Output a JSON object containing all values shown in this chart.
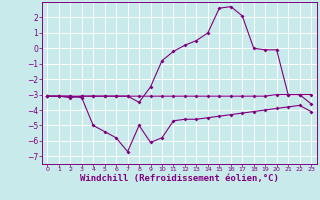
{
  "background_color": "#c8eaea",
  "grid_color": "#ffffff",
  "line_color": "#800080",
  "xlabel": "Windchill (Refroidissement éolien,°C)",
  "xlim": [
    -0.5,
    23.5
  ],
  "ylim": [
    -7.5,
    3.0
  ],
  "xticks": [
    0,
    1,
    2,
    3,
    4,
    5,
    6,
    7,
    8,
    9,
    10,
    11,
    12,
    13,
    14,
    15,
    16,
    17,
    18,
    19,
    20,
    21,
    22,
    23
  ],
  "yticks": [
    -7,
    -6,
    -5,
    -4,
    -3,
    -2,
    -1,
    0,
    1,
    2
  ],
  "line1_x": [
    0,
    1,
    2,
    3,
    4,
    5,
    6,
    7,
    8,
    9,
    10,
    11,
    12,
    13,
    14,
    15,
    16,
    17,
    18,
    19,
    20,
    21,
    22,
    23
  ],
  "line1_y": [
    -3.1,
    -3.1,
    -3.2,
    -3.1,
    -3.1,
    -3.1,
    -3.1,
    -3.1,
    -3.1,
    -3.1,
    -3.1,
    -3.1,
    -3.1,
    -3.1,
    -3.1,
    -3.1,
    -3.1,
    -3.1,
    -3.1,
    -3.1,
    -3.0,
    -3.0,
    -3.0,
    -3.0
  ],
  "line2_x": [
    0,
    1,
    2,
    3,
    4,
    5,
    6,
    7,
    8,
    9,
    10,
    11,
    12,
    13,
    14,
    15,
    16,
    17,
    18,
    19,
    20,
    21,
    22,
    23
  ],
  "line2_y": [
    -3.1,
    -3.1,
    -3.1,
    -3.2,
    -5.0,
    -5.4,
    -5.8,
    -6.7,
    -5.0,
    -6.1,
    -5.8,
    -4.7,
    -4.6,
    -4.6,
    -4.5,
    -4.4,
    -4.3,
    -4.2,
    -4.1,
    -4.0,
    -3.9,
    -3.8,
    -3.7,
    -4.1
  ],
  "line3_x": [
    0,
    1,
    2,
    3,
    4,
    5,
    6,
    7,
    8,
    9,
    10,
    11,
    12,
    13,
    14,
    15,
    16,
    17,
    18,
    19,
    20,
    21,
    22,
    23
  ],
  "line3_y": [
    -3.1,
    -3.1,
    -3.1,
    -3.1,
    -3.1,
    -3.1,
    -3.1,
    -3.1,
    -3.5,
    -2.5,
    -0.8,
    -0.2,
    0.2,
    0.5,
    1.0,
    2.6,
    2.7,
    2.1,
    0.0,
    -0.1,
    -0.1,
    -3.0,
    -3.0,
    -3.6
  ]
}
